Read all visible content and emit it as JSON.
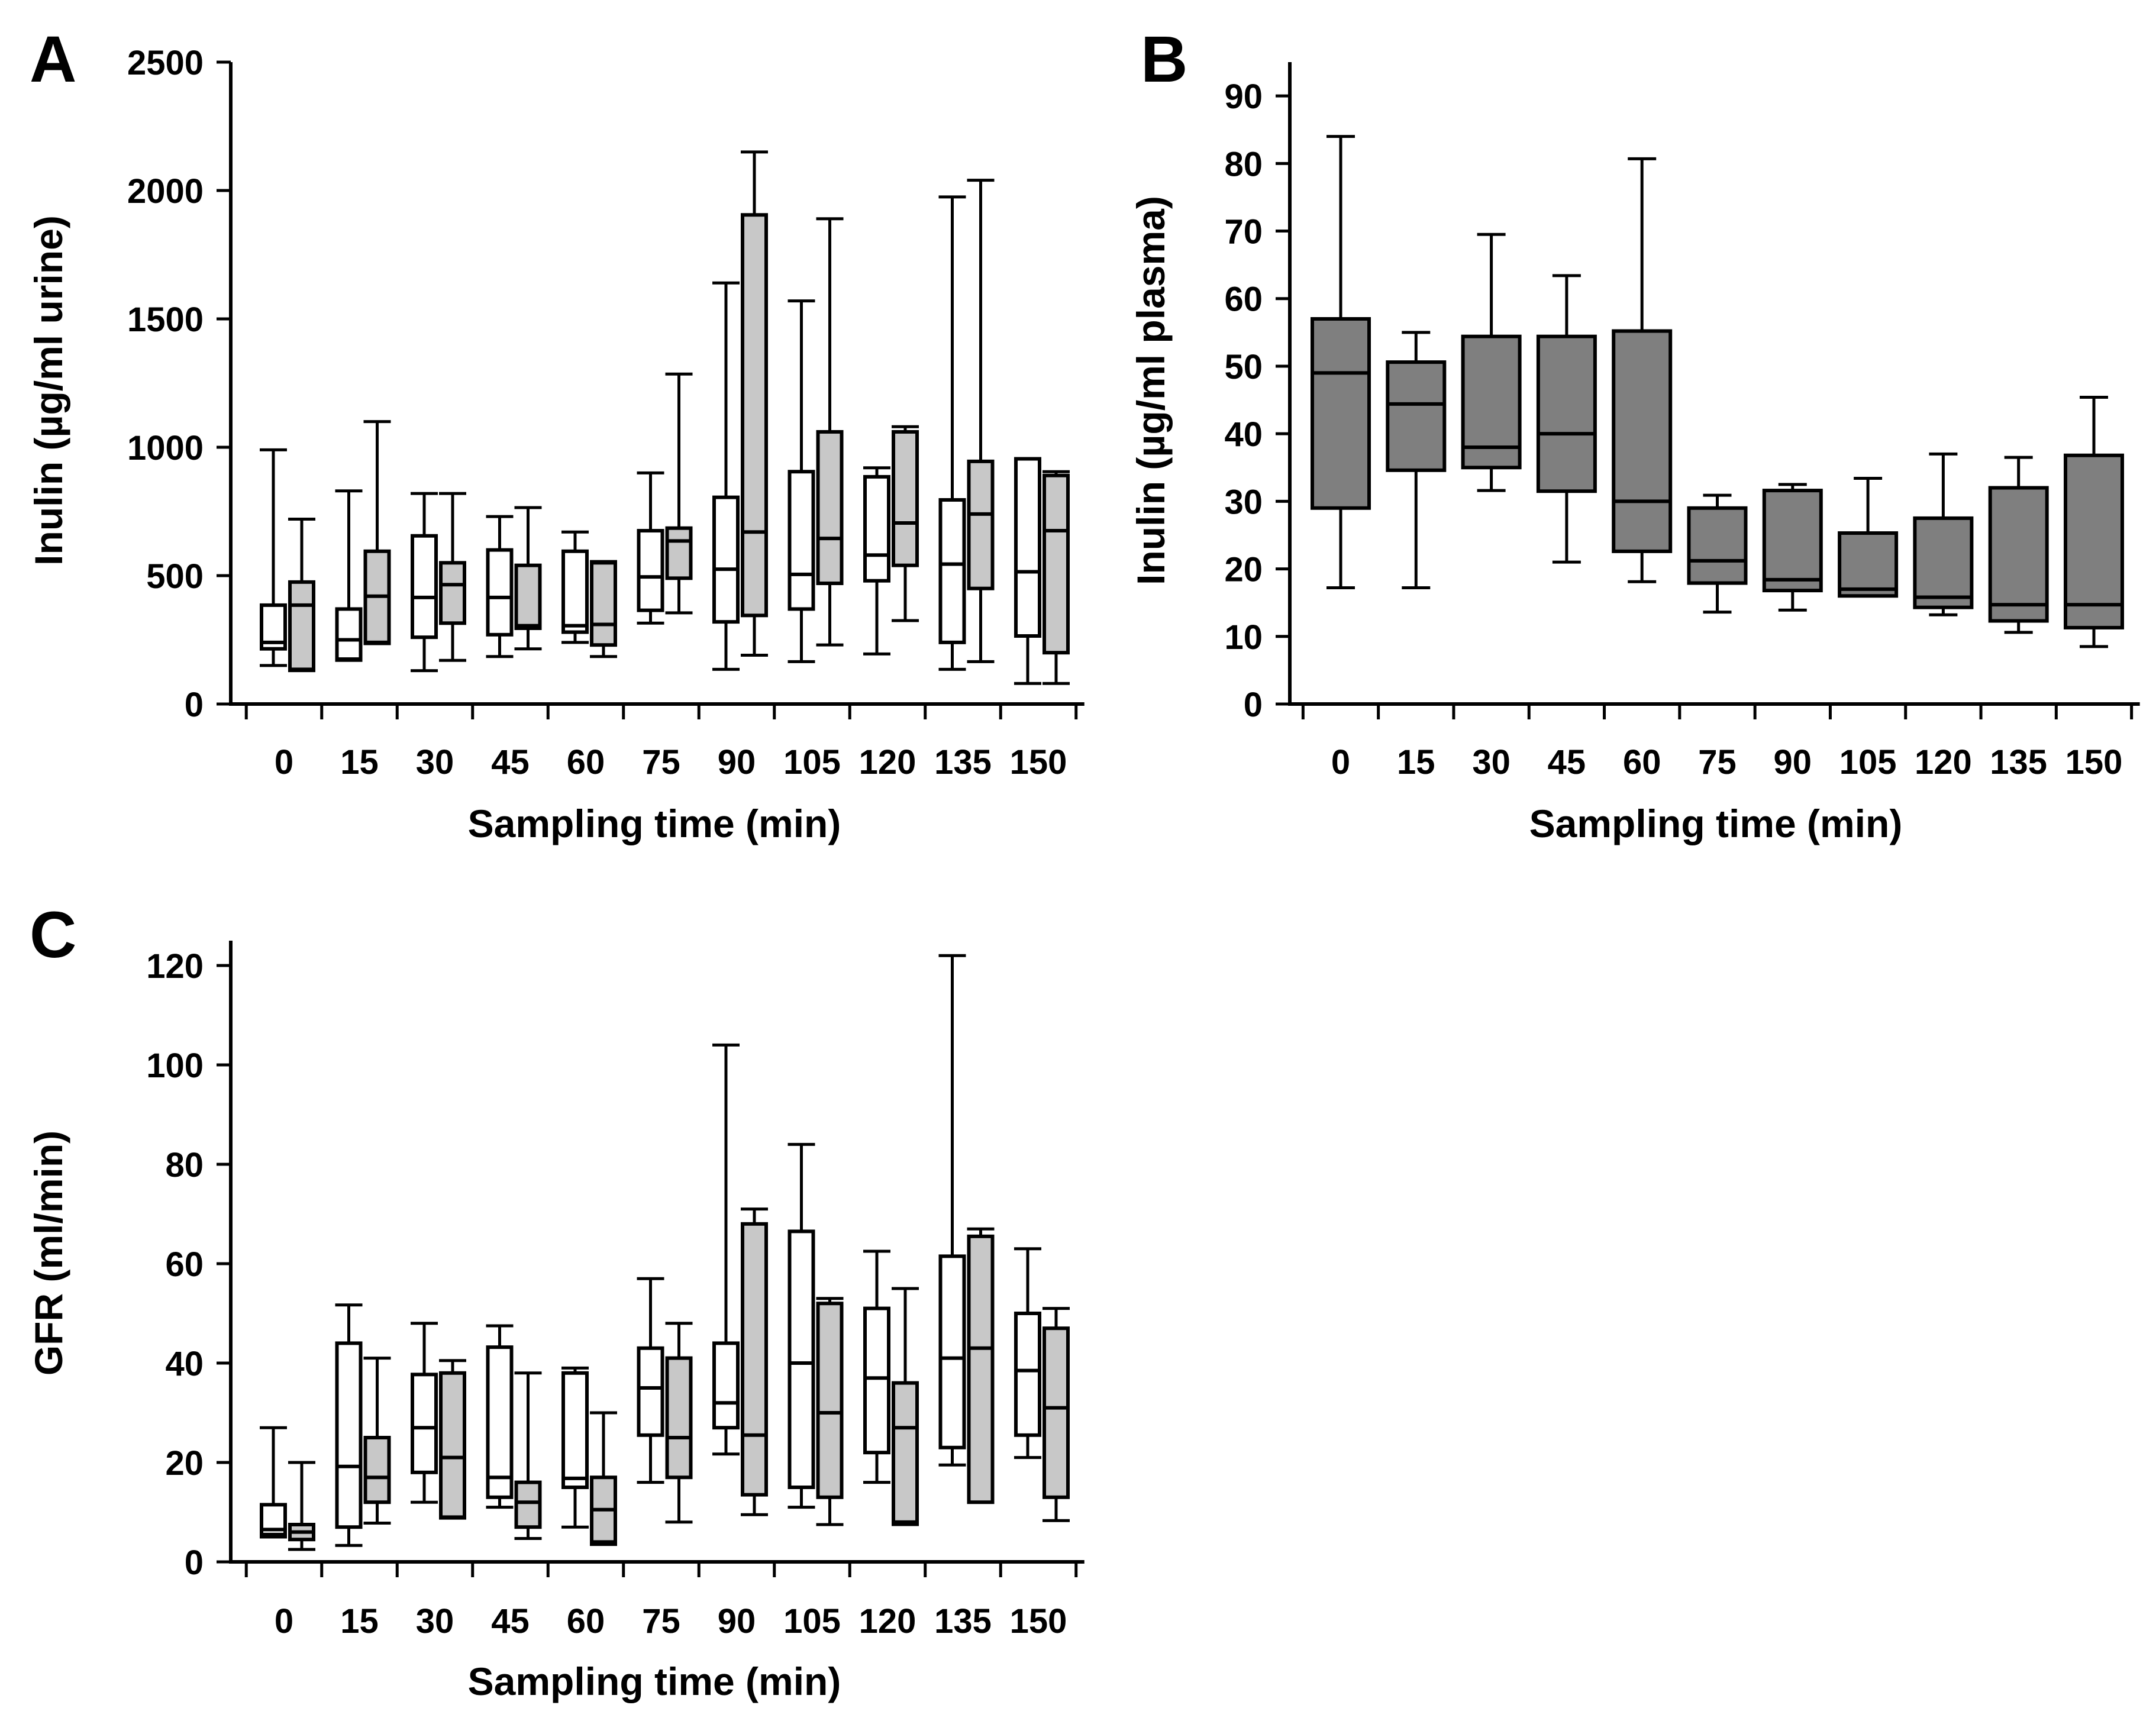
{
  "figure": {
    "colors": {
      "white_box": "#ffffff",
      "light_gray_box": "#c8c8c8",
      "dark_gray_box": "#7f7f7f",
      "line": "#000000"
    }
  },
  "chart_data": [
    {
      "id": "A",
      "panel_label": "A",
      "type": "box",
      "title": "",
      "xlabel": "Sampling time (min)",
      "ylabel": "Inulin (µg/ml urine)",
      "ylim": [
        0,
        2500
      ],
      "yticks": [
        0,
        500,
        1000,
        1500,
        2000,
        2500
      ],
      "categories": [
        "0",
        "15",
        "30",
        "45",
        "60",
        "75",
        "90",
        "105",
        "120",
        "135",
        "150"
      ],
      "series": [
        {
          "name": "series 1 (white)",
          "color": "#ffffff",
          "boxes": [
            {
              "min": 150,
              "q1": 215,
              "median": 240,
              "q3": 385,
              "max": 990
            },
            {
              "min": 170,
              "q1": 175,
              "median": 250,
              "q3": 370,
              "max": 830
            },
            {
              "min": 130,
              "q1": 260,
              "median": 415,
              "q3": 655,
              "max": 820
            },
            {
              "min": 185,
              "q1": 270,
              "median": 415,
              "q3": 600,
              "max": 730
            },
            {
              "min": 240,
              "q1": 280,
              "median": 305,
              "q3": 595,
              "max": 670
            },
            {
              "min": 315,
              "q1": 365,
              "median": 495,
              "q3": 675,
              "max": 900
            },
            {
              "min": 135,
              "q1": 320,
              "median": 525,
              "q3": 805,
              "max": 1640
            },
            {
              "min": 165,
              "q1": 370,
              "median": 505,
              "q3": 905,
              "max": 1570
            },
            {
              "min": 195,
              "q1": 480,
              "median": 580,
              "q3": 885,
              "max": 920
            },
            {
              "min": 135,
              "q1": 240,
              "median": 545,
              "q3": 795,
              "max": 1975
            },
            {
              "min": 80,
              "q1": 265,
              "median": 515,
              "q3": 955,
              "max": 955
            }
          ]
        },
        {
          "name": "series 2 (gray)",
          "color": "#c8c8c8",
          "boxes": [
            {
              "min": 130,
              "q1": 135,
              "median": 385,
              "q3": 475,
              "max": 720
            },
            {
              "min": 235,
              "q1": 240,
              "median": 420,
              "q3": 595,
              "max": 1100
            },
            {
              "min": 170,
              "q1": 315,
              "median": 465,
              "q3": 550,
              "max": 820
            },
            {
              "min": 215,
              "q1": 295,
              "median": 305,
              "q3": 540,
              "max": 765
            },
            {
              "min": 185,
              "q1": 230,
              "median": 310,
              "q3": 550,
              "max": 555
            },
            {
              "min": 355,
              "q1": 490,
              "median": 635,
              "q3": 685,
              "max": 1285
            },
            {
              "min": 190,
              "q1": 345,
              "median": 670,
              "q3": 1905,
              "max": 2150
            },
            {
              "min": 230,
              "q1": 470,
              "median": 645,
              "q3": 1060,
              "max": 1890
            },
            {
              "min": 325,
              "q1": 540,
              "median": 705,
              "q3": 1060,
              "max": 1080
            },
            {
              "min": 165,
              "q1": 450,
              "median": 740,
              "q3": 945,
              "max": 2040
            },
            {
              "min": 80,
              "q1": 200,
              "median": 675,
              "q3": 890,
              "max": 905
            }
          ]
        }
      ]
    },
    {
      "id": "B",
      "panel_label": "B",
      "type": "box",
      "title": "",
      "xlabel": "Sampling time (min)",
      "ylabel": "Inulin (µg/ml plasma)",
      "ylim": [
        0,
        95
      ],
      "yticks": [
        0,
        10,
        20,
        30,
        40,
        50,
        60,
        70,
        80,
        90
      ],
      "categories": [
        "0",
        "15",
        "30",
        "45",
        "60",
        "75",
        "90",
        "105",
        "120",
        "135",
        "150"
      ],
      "series": [
        {
          "name": "series 1 (dark gray)",
          "color": "#7f7f7f",
          "boxes": [
            {
              "min": 17.2,
              "q1": 29,
              "median": 49,
              "q3": 57,
              "max": 84
            },
            {
              "min": 17.2,
              "q1": 34.6,
              "median": 44.4,
              "q3": 50.6,
              "max": 55
            },
            {
              "min": 31.6,
              "q1": 35,
              "median": 38,
              "q3": 54.4,
              "max": 69.5
            },
            {
              "min": 21,
              "q1": 31.5,
              "median": 40,
              "q3": 54.4,
              "max": 63.4
            },
            {
              "min": 18.1,
              "q1": 22.6,
              "median": 30,
              "q3": 55.2,
              "max": 80.7
            },
            {
              "min": 13.6,
              "q1": 17.9,
              "median": 21.2,
              "q3": 29,
              "max": 30.9
            },
            {
              "min": 13.9,
              "q1": 16.8,
              "median": 18.4,
              "q3": 31.6,
              "max": 32.5
            },
            {
              "min": 16,
              "q1": 16,
              "median": 17,
              "q3": 25.3,
              "max": 33.4
            },
            {
              "min": 13.2,
              "q1": 14.3,
              "median": 15.8,
              "q3": 27.5,
              "max": 37
            },
            {
              "min": 10.6,
              "q1": 12.3,
              "median": 14.7,
              "q3": 32,
              "max": 36.5
            },
            {
              "min": 8.5,
              "q1": 11.3,
              "median": 14.7,
              "q3": 36.8,
              "max": 45.4
            }
          ]
        }
      ]
    },
    {
      "id": "C",
      "panel_label": "C",
      "type": "box",
      "title": "",
      "xlabel": "Sampling time (min)",
      "ylabel": "GFR (ml/min)",
      "ylim": [
        0,
        125
      ],
      "yticks": [
        0,
        20,
        40,
        60,
        80,
        100,
        120
      ],
      "categories": [
        "0",
        "15",
        "30",
        "45",
        "60",
        "75",
        "90",
        "105",
        "120",
        "135",
        "150"
      ],
      "series": [
        {
          "name": "series 1 (white)",
          "color": "#ffffff",
          "boxes": [
            {
              "min": 5,
              "q1": 5.5,
              "median": 6.5,
              "q3": 11.5,
              "max": 27
            },
            {
              "min": 3.3,
              "q1": 7,
              "median": 19.2,
              "q3": 44,
              "max": 51.7
            },
            {
              "min": 12,
              "q1": 18,
              "median": 27,
              "q3": 37.7,
              "max": 48
            },
            {
              "min": 11,
              "q1": 13,
              "median": 17,
              "q3": 43.2,
              "max": 47.5
            },
            {
              "min": 7,
              "q1": 15,
              "median": 16.8,
              "q3": 38,
              "max": 39
            },
            {
              "min": 16,
              "q1": 25.5,
              "median": 35,
              "q3": 43,
              "max": 57
            },
            {
              "min": 21.7,
              "q1": 27,
              "median": 32,
              "q3": 44,
              "max": 104
            },
            {
              "min": 11,
              "q1": 15,
              "median": 40,
              "q3": 66.5,
              "max": 84
            },
            {
              "min": 16,
              "q1": 22,
              "median": 37,
              "q3": 51,
              "max": 62.5
            },
            {
              "min": 19.5,
              "q1": 23,
              "median": 41,
              "q3": 61.5,
              "max": 122
            },
            {
              "min": 21,
              "q1": 25.5,
              "median": 38.5,
              "q3": 50,
              "max": 63
            }
          ]
        },
        {
          "name": "series 2 (gray)",
          "color": "#c8c8c8",
          "boxes": [
            {
              "min": 2.5,
              "q1": 4.5,
              "median": 6,
              "q3": 7.5,
              "max": 20
            },
            {
              "min": 7.8,
              "q1": 12,
              "median": 17,
              "q3": 25,
              "max": 41
            },
            {
              "min": 8.8,
              "q1": 9,
              "median": 21,
              "q3": 38,
              "max": 40.5
            },
            {
              "min": 4.7,
              "q1": 7,
              "median": 12,
              "q3": 16,
              "max": 38
            },
            {
              "min": 3.5,
              "q1": 4,
              "median": 10.5,
              "q3": 17,
              "max": 30
            },
            {
              "min": 8,
              "q1": 17,
              "median": 25,
              "q3": 41,
              "max": 48
            },
            {
              "min": 9.5,
              "q1": 13.5,
              "median": 25.5,
              "q3": 68,
              "max": 71
            },
            {
              "min": 7.5,
              "q1": 13,
              "median": 30,
              "q3": 52,
              "max": 53
            },
            {
              "min": 7.5,
              "q1": 8,
              "median": 27,
              "q3": 36,
              "max": 55
            },
            {
              "min": 12,
              "q1": 12,
              "median": 43,
              "q3": 65.5,
              "max": 67
            },
            {
              "min": 8.3,
              "q1": 13,
              "median": 31,
              "q3": 47,
              "max": 51
            }
          ]
        }
      ]
    }
  ]
}
